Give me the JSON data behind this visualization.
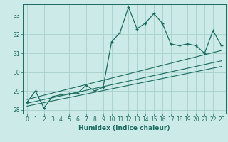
{
  "title": "",
  "xlabel": "Humidex (Indice chaleur)",
  "bg_color": "#cceae8",
  "grid_color": "#aad4d0",
  "line_color": "#1a6b5e",
  "xlim": [
    -0.5,
    23.5
  ],
  "ylim": [
    27.8,
    33.6
  ],
  "yticks": [
    28,
    29,
    30,
    31,
    32,
    33
  ],
  "xticks": [
    0,
    1,
    2,
    3,
    4,
    5,
    6,
    7,
    8,
    9,
    10,
    11,
    12,
    13,
    14,
    15,
    16,
    17,
    18,
    19,
    20,
    21,
    22,
    23
  ],
  "main_data": [
    [
      0,
      28.4
    ],
    [
      1,
      29.0
    ],
    [
      2,
      28.1
    ],
    [
      3,
      28.7
    ],
    [
      4,
      28.8
    ],
    [
      5,
      28.85
    ],
    [
      6,
      28.9
    ],
    [
      7,
      29.3
    ],
    [
      8,
      29.0
    ],
    [
      9,
      29.2
    ],
    [
      10,
      31.6
    ],
    [
      11,
      32.1
    ],
    [
      12,
      33.45
    ],
    [
      13,
      32.3
    ],
    [
      14,
      32.6
    ],
    [
      15,
      33.1
    ],
    [
      16,
      32.6
    ],
    [
      17,
      31.5
    ],
    [
      18,
      31.4
    ],
    [
      19,
      31.5
    ],
    [
      20,
      31.4
    ],
    [
      21,
      31.0
    ],
    [
      22,
      32.2
    ],
    [
      23,
      31.4
    ]
  ],
  "trend_data": [
    [
      [
        0,
        28.2
      ],
      [
        23,
        30.3
      ]
    ],
    [
      [
        0,
        28.35
      ],
      [
        23,
        30.6
      ]
    ],
    [
      [
        0,
        28.55
      ],
      [
        23,
        31.15
      ]
    ]
  ],
  "xlabel_fontsize": 6.5,
  "tick_fontsize": 5.5
}
